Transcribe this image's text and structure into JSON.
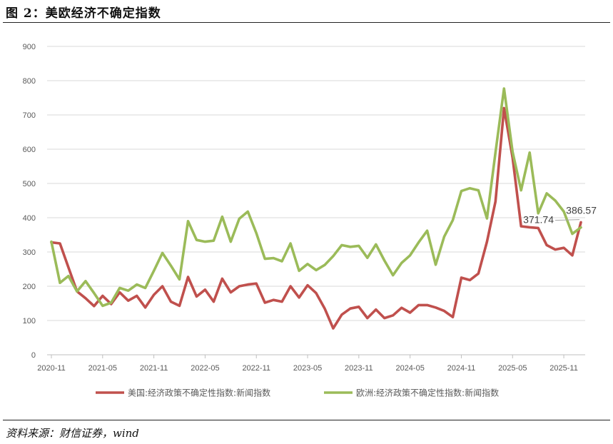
{
  "figure": {
    "title": "图 2：美欧经济不确定指数",
    "source": "资料来源：财信证券，wind"
  },
  "chart_data": {
    "type": "line",
    "ylim": [
      0,
      900
    ],
    "yticks": [
      0,
      100,
      200,
      300,
      400,
      500,
      600,
      700,
      800,
      900
    ],
    "x_tick_labels": [
      "2020-11",
      "2021-05",
      "2021-11",
      "2022-05",
      "2022-11",
      "2023-05",
      "2023-11",
      "2024-05",
      "2024-11",
      "2025-05",
      "2025-11"
    ],
    "grid": true,
    "legend_position": "bottom",
    "x": [
      "2020-11",
      "2020-12",
      "2021-01",
      "2021-02",
      "2021-03",
      "2021-04",
      "2021-05",
      "2021-06",
      "2021-07",
      "2021-08",
      "2021-09",
      "2021-10",
      "2021-11",
      "2021-12",
      "2022-01",
      "2022-02",
      "2022-03",
      "2022-04",
      "2022-05",
      "2022-06",
      "2022-07",
      "2022-08",
      "2022-09",
      "2022-10",
      "2022-11",
      "2022-12",
      "2023-01",
      "2023-02",
      "2023-03",
      "2023-04",
      "2023-05",
      "2023-06",
      "2023-07",
      "2023-08",
      "2023-09",
      "2023-10",
      "2023-11",
      "2023-12",
      "2024-01",
      "2024-02",
      "2024-03",
      "2024-04",
      "2024-05",
      "2024-06",
      "2024-07",
      "2024-08",
      "2024-09",
      "2024-10",
      "2024-11",
      "2024-12",
      "2025-01",
      "2025-02",
      "2025-03",
      "2025-04",
      "2025-05",
      "2025-06",
      "2025-07",
      "2025-08",
      "2025-09",
      "2025-10",
      "2025-11",
      "2025-12",
      "2026-01"
    ],
    "series": [
      {
        "name": "美国:经济政策不确定性指数:新闻指数",
        "color": "#c0504d",
        "values": [
          328,
          325,
          255,
          185,
          165,
          142,
          172,
          148,
          182,
          158,
          172,
          138,
          175,
          200,
          155,
          143,
          227,
          170,
          190,
          155,
          222,
          182,
          200,
          205,
          208,
          152,
          160,
          155,
          200,
          167,
          203,
          180,
          135,
          77,
          117,
          135,
          140,
          107,
          132,
          107,
          115,
          137,
          123,
          145,
          145,
          138,
          128,
          110,
          225,
          218,
          237,
          330,
          447,
          720,
          575,
          375,
          372,
          370,
          320,
          307,
          312,
          290,
          386.57
        ]
      },
      {
        "name": "欧洲:经济政策不确定性指数:新闻指数",
        "color": "#9bbb59",
        "values": [
          330,
          210,
          230,
          185,
          215,
          180,
          143,
          152,
          195,
          187,
          205,
          195,
          245,
          297,
          260,
          220,
          390,
          335,
          330,
          333,
          403,
          330,
          397,
          418,
          355,
          280,
          282,
          273,
          325,
          245,
          265,
          247,
          262,
          288,
          320,
          315,
          318,
          283,
          322,
          275,
          232,
          268,
          290,
          328,
          362,
          263,
          345,
          393,
          478,
          486,
          480,
          398,
          590,
          777,
          592,
          480,
          590,
          413,
          471,
          450,
          418,
          353,
          371.74
        ]
      }
    ],
    "annotations": [
      {
        "text": "386.57",
        "series": 0
      },
      {
        "text": "371.74",
        "series": 1
      }
    ]
  }
}
